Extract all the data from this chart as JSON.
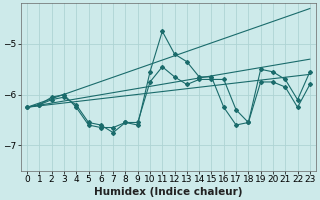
{
  "xlabel": "Humidex (Indice chaleur)",
  "ylabel": "",
  "background_color": "#cdeaea",
  "grid_color": "#aed4d4",
  "line_color": "#1a6b6b",
  "x_data": [
    0,
    1,
    2,
    3,
    4,
    5,
    6,
    7,
    8,
    9,
    10,
    11,
    12,
    13,
    14,
    15,
    16,
    17,
    18,
    19,
    20,
    21,
    22,
    23
  ],
  "line1": [
    -6.25,
    -6.2,
    -6.1,
    -6.05,
    -6.2,
    -6.55,
    -6.6,
    -6.75,
    -6.55,
    -6.6,
    -5.55,
    -4.75,
    -5.2,
    -5.35,
    -5.65,
    -5.65,
    -6.25,
    -6.6,
    -6.55,
    -5.5,
    -5.55,
    -5.7,
    -6.1,
    -5.55
  ],
  "line2": [
    -6.25,
    -6.2,
    -6.05,
    -6.0,
    -6.25,
    -6.6,
    -6.65,
    -6.65,
    -6.55,
    -6.55,
    -5.75,
    -5.45,
    -5.65,
    -5.8,
    -5.7,
    -5.7,
    -5.7,
    -6.3,
    -6.55,
    -5.75,
    -5.75,
    -5.85,
    -6.25,
    -5.8
  ],
  "trend1_x": [
    0,
    23
  ],
  "trend1_y": [
    -6.25,
    -4.3
  ],
  "trend2_x": [
    0,
    23
  ],
  "trend2_y": [
    -6.25,
    -5.3
  ],
  "trend3_x": [
    0,
    23
  ],
  "trend3_y": [
    -6.25,
    -5.6
  ],
  "ylim": [
    -7.5,
    -4.2
  ],
  "xlim": [
    -0.5,
    23.5
  ],
  "yticks": [
    -7,
    -6,
    -5
  ],
  "xticks": [
    0,
    1,
    2,
    3,
    4,
    5,
    6,
    7,
    8,
    9,
    10,
    11,
    12,
    13,
    14,
    15,
    16,
    17,
    18,
    19,
    20,
    21,
    22,
    23
  ],
  "tick_fontsize": 6.5,
  "xlabel_fontsize": 7.5
}
